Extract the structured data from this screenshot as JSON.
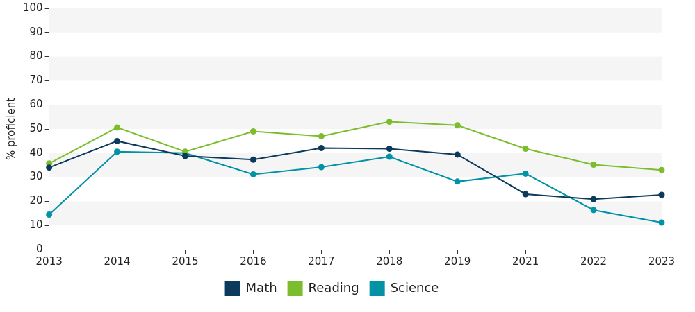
{
  "chart_data": {
    "type": "line",
    "y_label": "% proficient",
    "categories": [
      "2013",
      "2014",
      "2015",
      "2016",
      "2017",
      "2018",
      "2019",
      "2021",
      "2022",
      "2023"
    ],
    "series": [
      {
        "name": "Math",
        "color": "#0b3a5c",
        "values": [
          34,
          45,
          38.8,
          37.3,
          42.1,
          41.8,
          39.4,
          23,
          20.9,
          22.7
        ]
      },
      {
        "name": "Reading",
        "color": "#7cbd2d",
        "values": [
          35.7,
          50.6,
          40.6,
          49,
          47,
          53,
          51.5,
          41.8,
          35.2,
          33
        ]
      },
      {
        "name": "Science",
        "color": "#0093a6",
        "values": [
          14.5,
          40.6,
          40,
          31.2,
          34.2,
          38.5,
          28.2,
          31.5,
          16.4,
          11.2
        ]
      }
    ],
    "ylim": [
      0,
      100
    ],
    "yticks": [
      0,
      10,
      20,
      30,
      40,
      50,
      60,
      70,
      80,
      90,
      100
    ],
    "grid": true,
    "legend": "bottom",
    "marker": "circle"
  }
}
